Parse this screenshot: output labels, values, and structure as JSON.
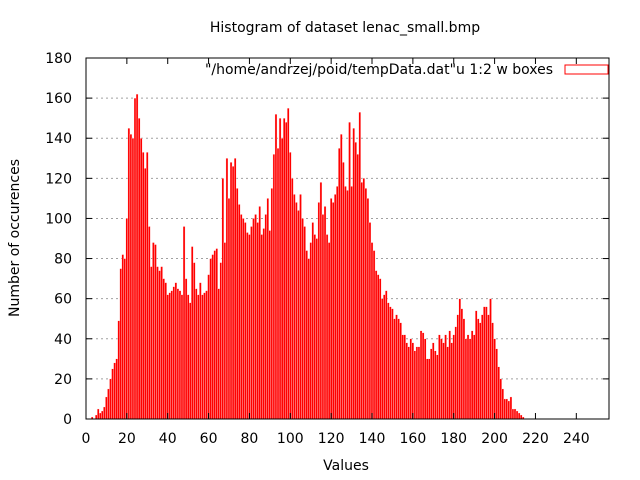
{
  "chart_data": {
    "type": "bar",
    "title": "Histogram of dataset lenac_small.bmp",
    "xlabel": "Values",
    "ylabel": "Number of occurences",
    "legend": {
      "label": "\"/home/andrzej/poid/tempData.dat\"u 1:2 w boxes",
      "position": "top-right"
    },
    "xlim": [
      0,
      256
    ],
    "ylim": [
      0,
      180
    ],
    "xticks": [
      0,
      20,
      40,
      60,
      80,
      100,
      120,
      140,
      160,
      180,
      200,
      220,
      240
    ],
    "yticks": [
      0,
      20,
      40,
      60,
      80,
      100,
      120,
      140,
      160,
      180
    ],
    "grid": "horizontal dotted",
    "colors": {
      "bars": "#ff0000",
      "grid": "#a0a0a0",
      "axis": "#000000"
    },
    "series": [
      {
        "values": [
          0,
          0,
          0,
          1,
          0,
          2,
          5,
          3,
          4,
          6,
          11,
          15,
          20,
          25,
          28,
          30,
          49,
          75,
          82,
          80,
          100,
          145,
          142,
          140,
          160,
          162,
          150,
          140,
          133,
          125,
          133,
          96,
          76,
          88,
          87,
          76,
          74,
          76,
          70,
          68,
          62,
          63,
          64,
          66,
          68,
          65,
          64,
          62,
          96,
          70,
          62,
          58,
          86,
          78,
          65,
          62,
          68,
          62,
          63,
          64,
          72,
          80,
          82,
          84,
          85,
          65,
          78,
          120,
          88,
          130,
          110,
          128,
          126,
          130,
          115,
          107,
          102,
          100,
          98,
          93,
          92,
          96,
          100,
          102,
          98,
          106,
          92,
          95,
          102,
          110,
          94,
          115,
          132,
          152,
          135,
          150,
          140,
          150,
          148,
          155,
          133,
          120,
          112,
          108,
          104,
          112,
          100,
          96,
          84,
          80,
          88,
          98,
          92,
          90,
          108,
          118,
          102,
          106,
          92,
          88,
          110,
          108,
          112,
          116,
          135,
          142,
          128,
          116,
          114,
          148,
          116,
          145,
          138,
          132,
          153,
          118,
          120,
          115,
          110,
          98,
          88,
          84,
          74,
          72,
          70,
          60,
          62,
          64,
          58,
          56,
          55,
          50,
          52,
          50,
          48,
          42,
          42,
          38,
          36,
          40,
          38,
          34,
          36,
          36,
          44,
          43,
          40,
          30,
          30,
          35,
          38,
          34,
          32,
          42,
          40,
          38,
          42,
          36,
          44,
          38,
          42,
          46,
          52,
          60,
          55,
          50,
          40,
          42,
          40,
          44,
          42,
          54,
          50,
          48,
          52,
          56,
          56,
          52,
          60,
          48,
          40,
          35,
          26,
          20,
          15,
          10,
          10,
          9,
          11,
          5,
          5,
          4,
          3,
          2,
          1,
          0,
          0,
          0,
          0,
          0,
          0,
          0,
          0,
          0,
          0,
          0,
          0,
          0,
          0,
          0,
          0,
          0,
          0,
          0,
          0,
          0,
          0,
          0,
          0,
          0,
          0,
          0,
          0,
          0,
          0,
          0,
          0,
          0,
          0,
          0,
          0,
          0,
          0,
          0
        ]
      }
    ]
  }
}
